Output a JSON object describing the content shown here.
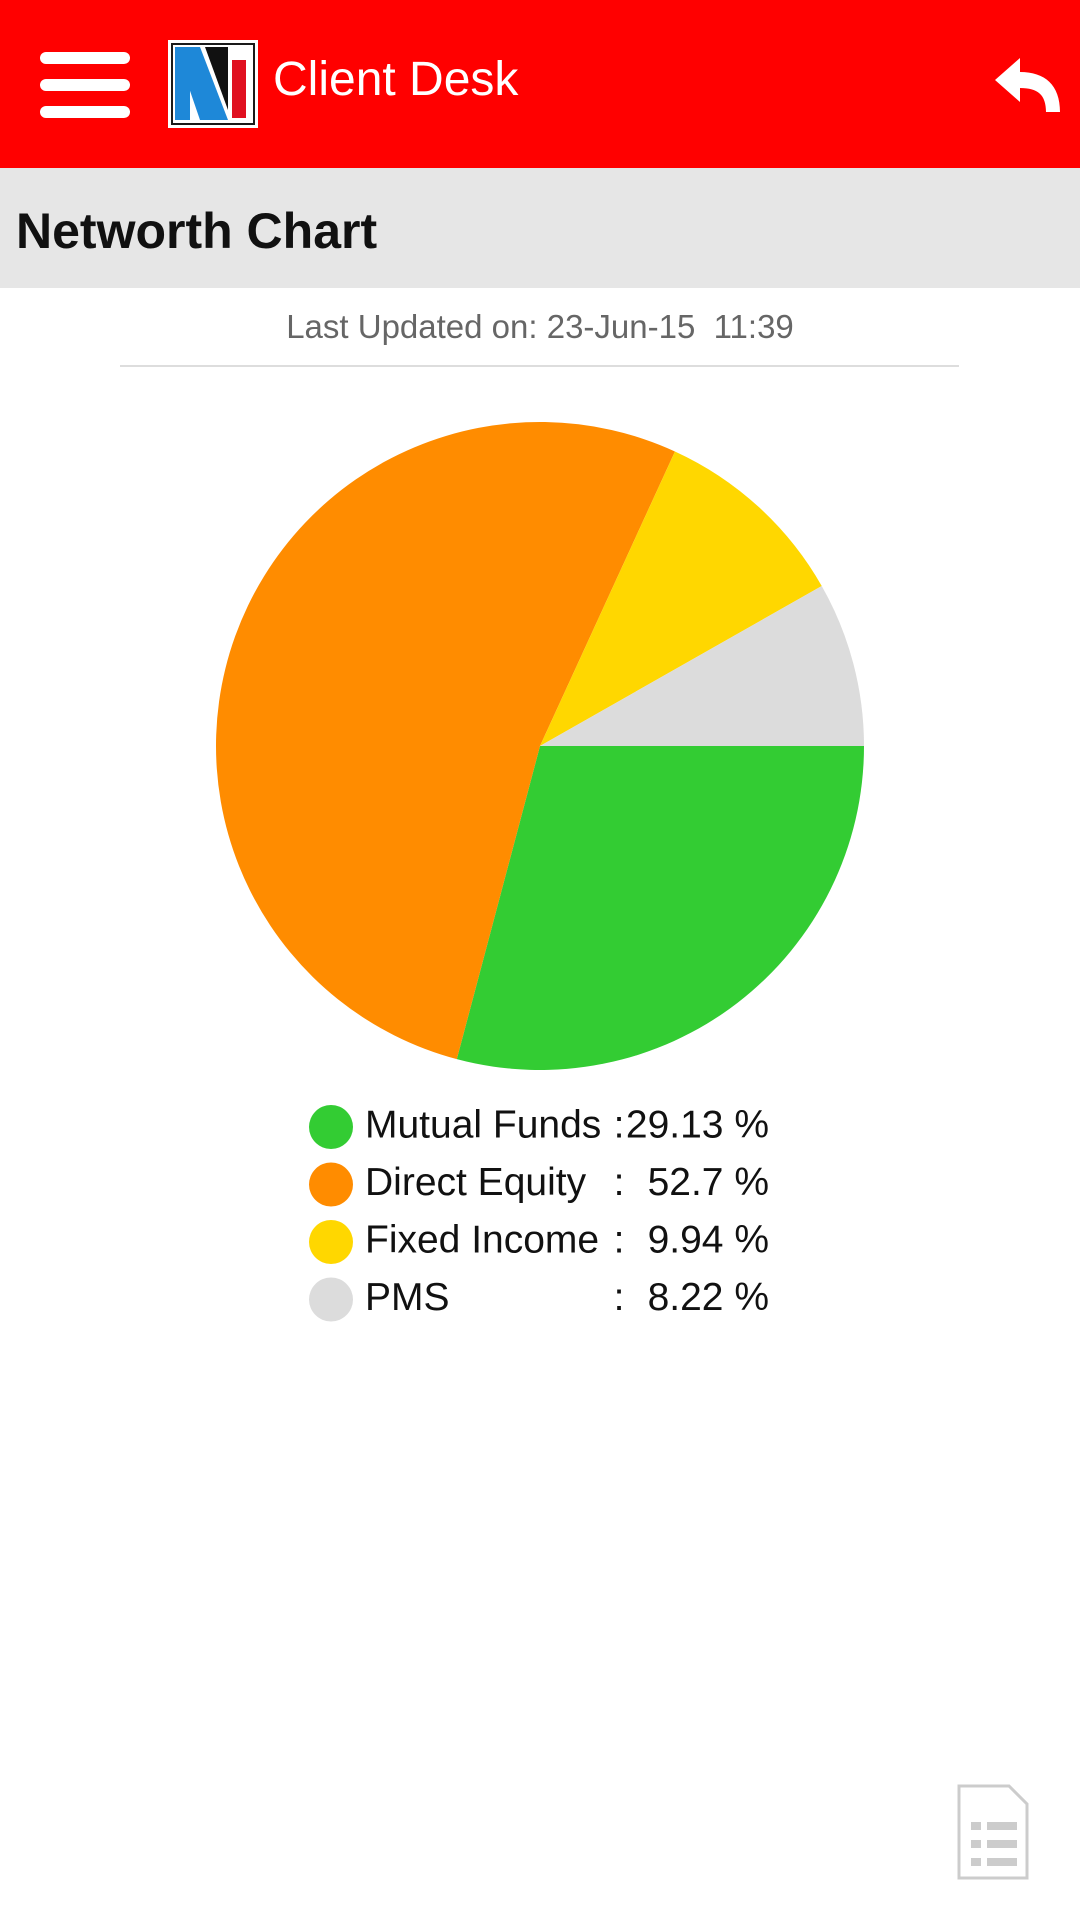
{
  "header": {
    "title": "Client Desk"
  },
  "section": {
    "title": "Networth Chart"
  },
  "last_updated": "Last Updated on: 23-Jun-15  11:39",
  "chart_data": {
    "type": "pie",
    "categories": [
      "Mutual Funds",
      "Direct Equity",
      "Fixed Income",
      "PMS"
    ],
    "values": [
      29.13,
      52.7,
      9.94,
      8.22
    ],
    "value_labels": [
      "29.13 %",
      "52.7 %",
      "9.94 %",
      "8.22 %"
    ],
    "colors": [
      "#33cc33",
      "#ff8c00",
      "#ffd700",
      "#dcdcdc"
    ],
    "legend_separator": ":"
  }
}
